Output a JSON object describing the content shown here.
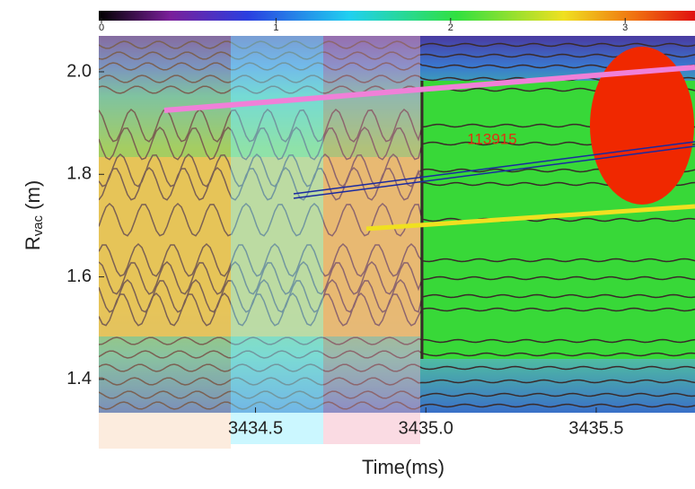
{
  "chart_data": {
    "type": "contour",
    "annotation": "113915",
    "x_label": "Time(ms)",
    "y_label": {
      "base": "R",
      "subscript": "vac",
      "unit": "(m)"
    },
    "xlim": [
      3434.04,
      3435.79
    ],
    "xticks": [
      3434.5,
      {
        "value": 3435,
        "label": "3435.0"
      },
      3435.5
    ],
    "ylim": [
      1.335,
      2.07
    ],
    "yticks": [
      {
        "value": 1.4,
        "label": "1.4"
      },
      {
        "value": 1.6,
        "label": "1.6"
      },
      {
        "value": 1.8,
        "label": "1.8"
      },
      {
        "value": 2,
        "label": "2.0"
      }
    ],
    "colorbar": {
      "clim": [
        0,
        3.4
      ],
      "ticks": [
        0,
        1,
        2,
        3
      ]
    },
    "grid": false
  }
}
